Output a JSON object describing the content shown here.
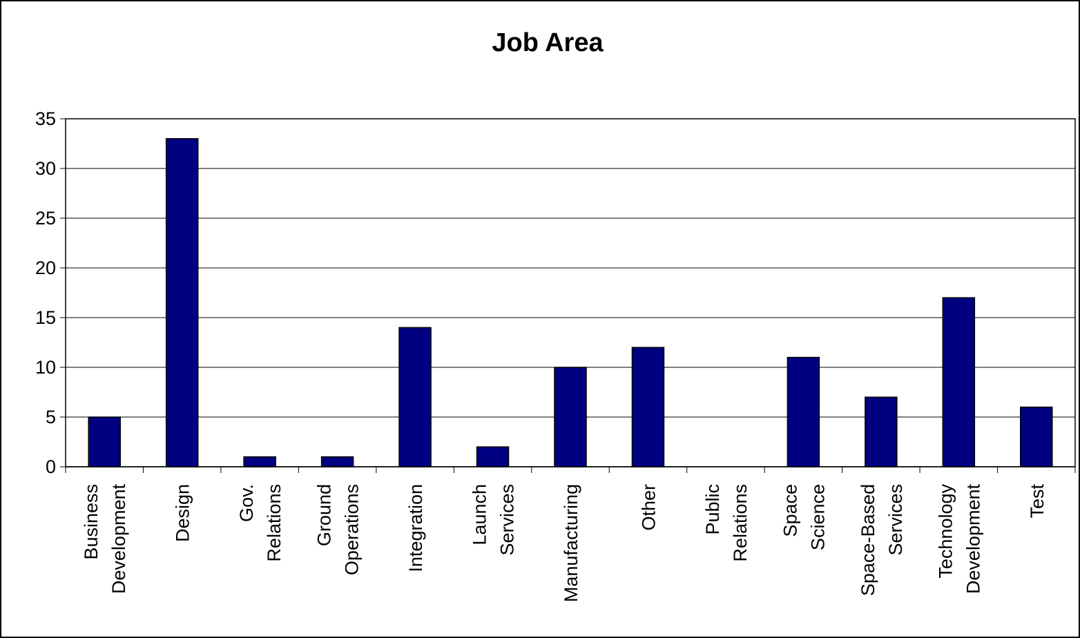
{
  "chart_data": {
    "type": "bar",
    "title": "Job Area",
    "xlabel": "",
    "ylabel": "",
    "ylim": [
      0,
      35
    ],
    "yticks": [
      0,
      5,
      10,
      15,
      20,
      25,
      30,
      35
    ],
    "grid": true,
    "legend": "none",
    "bar_color": "#000080",
    "categories": [
      [
        "Business",
        "Development"
      ],
      [
        "Design"
      ],
      [
        "Gov.",
        "Relations"
      ],
      [
        "Ground",
        "Operations"
      ],
      [
        "Integration"
      ],
      [
        "Launch",
        "Services"
      ],
      [
        "Manufacturing"
      ],
      [
        "Other"
      ],
      [
        "Public",
        "Relations"
      ],
      [
        "Space",
        "Science"
      ],
      [
        "Space-Based",
        "Services"
      ],
      [
        "Technology",
        "Development"
      ],
      [
        "Test"
      ]
    ],
    "values": [
      5,
      33,
      1,
      1,
      14,
      2,
      10,
      12,
      0,
      11,
      7,
      17,
      6
    ]
  }
}
